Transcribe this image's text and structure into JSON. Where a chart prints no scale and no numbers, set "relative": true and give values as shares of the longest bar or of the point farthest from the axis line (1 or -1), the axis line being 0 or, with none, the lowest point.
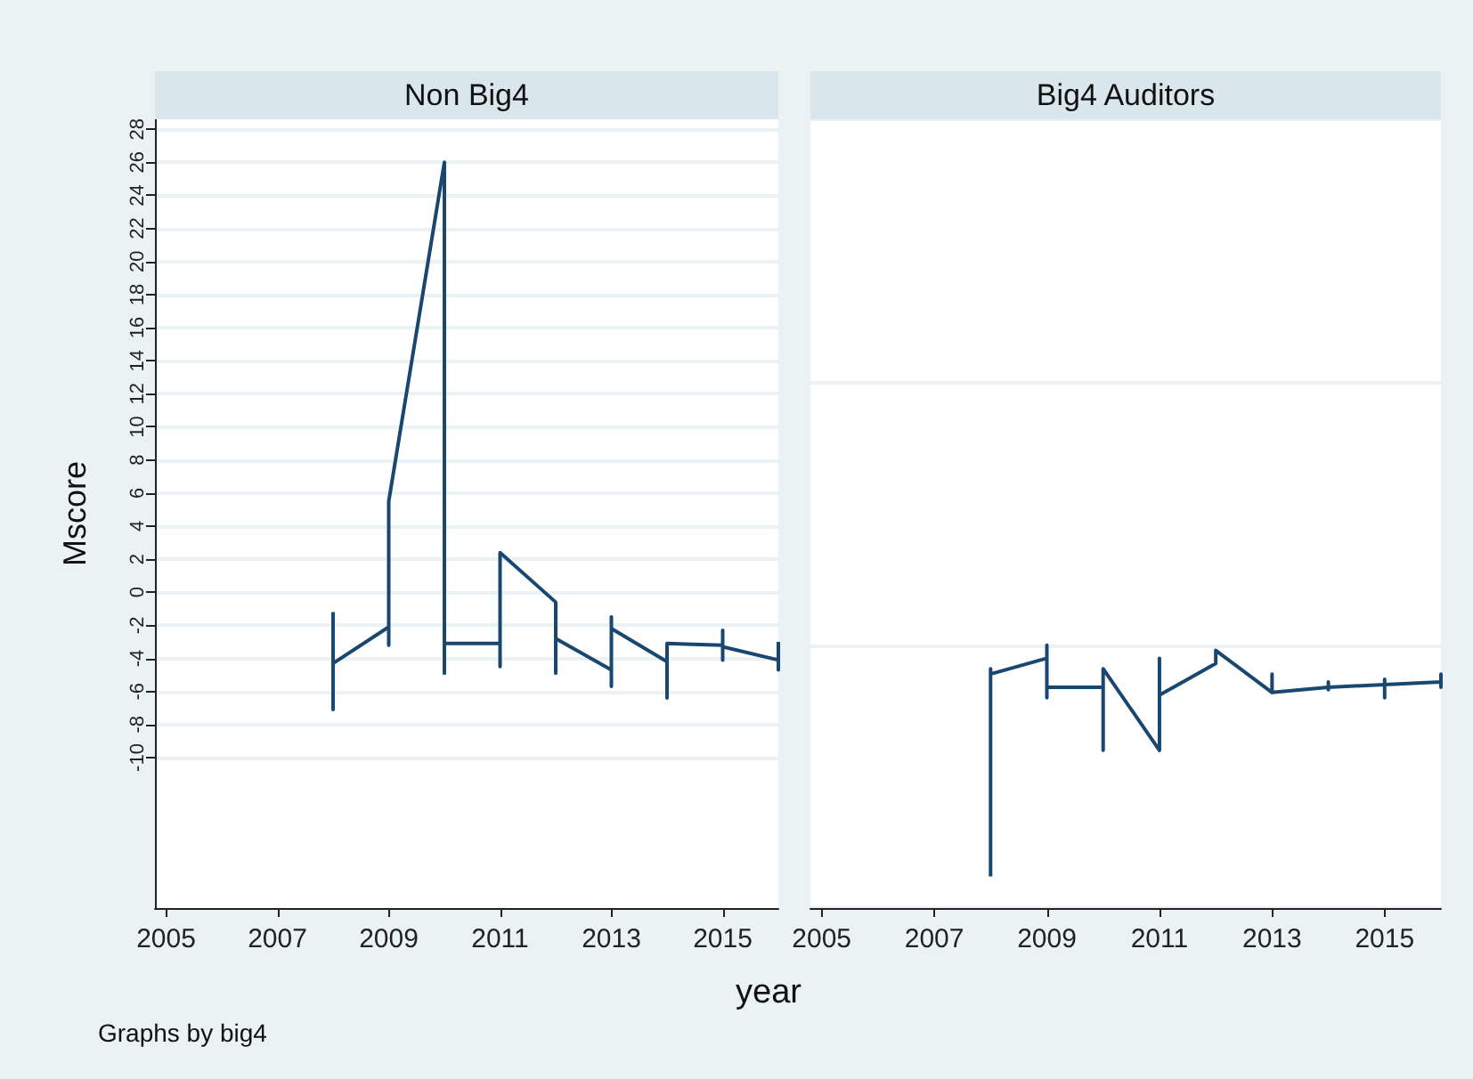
{
  "chart_data": [
    {
      "type": "line",
      "title": "Non Big4",
      "ylabel": "Mscore",
      "color": "#1a476f",
      "marker": "none",
      "grid": "y",
      "x": [
        2008,
        2008,
        2008,
        2009,
        2009,
        2009,
        2010,
        2010,
        2010,
        2011,
        2011,
        2011,
        2012,
        2012,
        2012,
        2013,
        2013,
        2013,
        2013,
        2014,
        2014,
        2014,
        2015,
        2015,
        2015,
        2015,
        2016,
        2016,
        2016
      ],
      "values": [
        -1.2,
        -7.1,
        -4.3,
        -2.1,
        -3.2,
        5.5,
        26,
        -4.9,
        -3.1,
        -3.1,
        -4.5,
        2.4,
        -0.6,
        -4.9,
        -2.8,
        -4.7,
        -5.7,
        -1.5,
        -2.2,
        -4.2,
        -6.4,
        -3.1,
        -3.2,
        -4.1,
        -2.3,
        -3.3,
        -4.1,
        -4.7,
        -3.0
      ],
      "xlim": [
        2004.8,
        2016
      ],
      "xticks": [
        2005,
        2007,
        2009,
        2011,
        2013,
        2015
      ],
      "ylim": [
        -19.1,
        28.6
      ],
      "yticks": [
        -10,
        -8,
        -6,
        -4,
        -2,
        0,
        2,
        4,
        6,
        8,
        10,
        12,
        14,
        16,
        18,
        20,
        22,
        24,
        26,
        28
      ],
      "annotations": [
        "Graphs by big4"
      ]
    },
    {
      "type": "line",
      "title": "Big4 Auditors",
      "xlabel": "year",
      "color": "#1a476f",
      "marker": "none",
      "relative": true,
      "tick_labels": "x",
      "x": [
        2008,
        2008,
        2008,
        2009,
        2009,
        2009,
        2009,
        2010,
        2010,
        2010,
        2011,
        2011,
        2011,
        2012,
        2012,
        2013,
        2013,
        2013,
        2014,
        2014,
        2014,
        2014,
        2015,
        2015,
        2015,
        2015,
        2016,
        2016,
        2016,
        2016
      ],
      "values": [
        0.12,
        0.91,
        0.89,
        0.95,
        1.0,
        0.8,
        0.84,
        0.84,
        0.6,
        0.91,
        0.6,
        0.95,
        0.81,
        0.93,
        0.98,
        0.82,
        0.89,
        0.82,
        0.84,
        0.86,
        0.83,
        0.84,
        0.85,
        0.87,
        0.8,
        0.85,
        0.86,
        0.89,
        0.84,
        0.86
      ],
      "xlim": [
        2004.8,
        2016
      ],
      "xticks": [
        2005,
        2007,
        2009,
        2011,
        2013,
        2015
      ]
    }
  ]
}
